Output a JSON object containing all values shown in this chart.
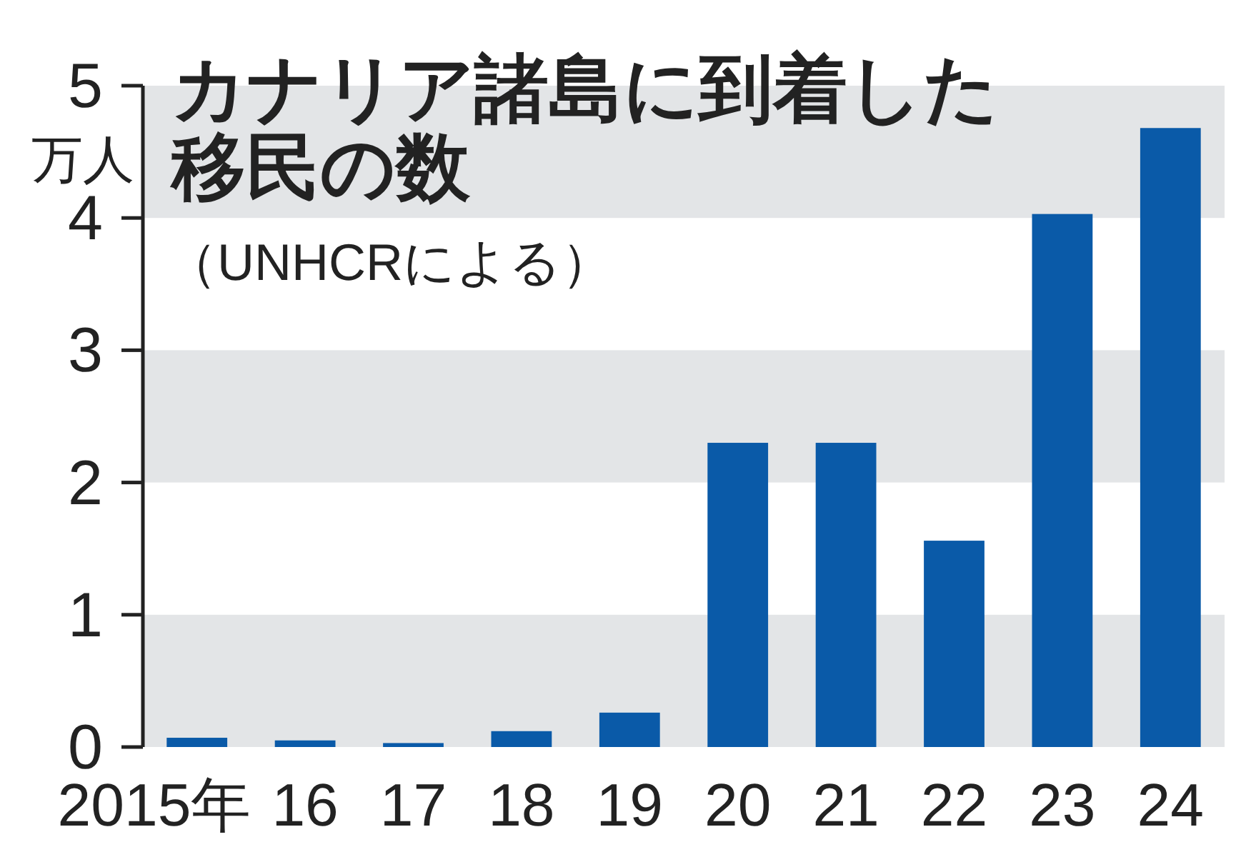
{
  "chart_data": {
    "type": "bar",
    "title": "カナリア諸島に到着した移民の数",
    "subtitle": "（UNHCRによる）",
    "ylabel": "万人",
    "categories": [
      "2015年",
      "16",
      "17",
      "18",
      "19",
      "20",
      "21",
      "22",
      "23",
      "24"
    ],
    "values": [
      0.07,
      0.05,
      0.03,
      0.12,
      0.26,
      2.3,
      2.3,
      1.56,
      4.03,
      4.68
    ],
    "color": "#0a5aa8",
    "ylim": [
      0,
      5
    ],
    "yticks": [
      0,
      1,
      2,
      3,
      4,
      5
    ],
    "bands": [
      {
        "axis": "y",
        "from": 0,
        "to": 1,
        "color": "#e3e5e7"
      },
      {
        "axis": "y",
        "from": 2,
        "to": 3,
        "color": "#e3e5e7"
      },
      {
        "axis": "y",
        "from": 4,
        "to": 5,
        "color": "#e3e5e7"
      }
    ]
  }
}
